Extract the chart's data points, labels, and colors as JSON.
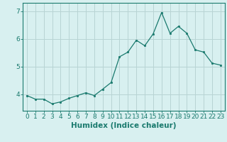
{
  "x": [
    0,
    1,
    2,
    3,
    4,
    5,
    6,
    7,
    8,
    9,
    10,
    11,
    12,
    13,
    14,
    15,
    16,
    17,
    18,
    19,
    20,
    21,
    22,
    23
  ],
  "y": [
    3.95,
    3.82,
    3.82,
    3.65,
    3.72,
    3.85,
    3.95,
    4.05,
    3.95,
    4.18,
    4.42,
    5.35,
    5.52,
    5.95,
    5.75,
    6.18,
    6.95,
    6.2,
    6.45,
    6.2,
    5.6,
    5.52,
    5.12,
    5.05
  ],
  "line_color": "#1a7a6e",
  "marker": ".",
  "marker_size": 3.5,
  "bg_color": "#d8f0f0",
  "grid_color": "#b8d4d4",
  "xlabel": "Humidex (Indice chaleur)",
  "xlabel_fontsize": 7.5,
  "tick_fontsize": 6.5,
  "yticks": [
    4,
    5,
    6,
    7
  ],
  "ylim": [
    3.4,
    7.3
  ],
  "xlim": [
    -0.5,
    23.5
  ]
}
